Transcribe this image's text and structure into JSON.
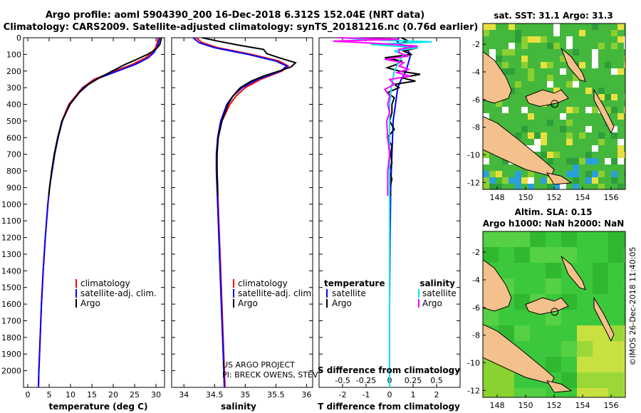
{
  "header": {
    "line1": "Argo profile: aoml 5904390_200 16-Dec-2018 6.312S 152.04E (NRT data)",
    "line2": "Climatology: CARS2009. Satellite-adjusted climatology: synTS_20181216.nc (0.76d earlier)"
  },
  "map_top": {
    "title": "sat. SST: 31.1 Argo: 31.3",
    "xticks": [
      "148",
      "150",
      "152",
      "154",
      "156"
    ],
    "yticks": [
      "-2",
      "-4",
      "-6",
      "-8",
      "-10",
      "-12"
    ],
    "profile_lon": 152.04,
    "profile_lat": -6.312
  },
  "map_bottom": {
    "title1": "Altim. SLA: 0.15",
    "title2": "Argo h1000: NaN h2000: NaN",
    "xticks": [
      "148",
      "150",
      "152",
      "154",
      "156"
    ],
    "yticks": [
      "-2",
      "-4",
      "-6",
      "-8",
      "-10",
      "-12"
    ],
    "profile_lon": 152.04,
    "profile_lat": -6.312
  },
  "credits": {
    "project": "US ARGO PROJECT",
    "pi": "PI: BRECK OWENS, STEVE JAYNE, P. ROBBINS",
    "imos": "©IMOS 26-Dec-2018 11:40:05"
  },
  "colors": {
    "climatology": "#ff0000",
    "satellite": "#0000ff",
    "argo": "#000000",
    "sal_satellite": "#00e5e5",
    "sal_argo": "#ff00ff",
    "ocean": "#3fbf3f",
    "land": "#f4c08c"
  },
  "chart_data": [
    {
      "type": "line",
      "name": "temperature",
      "xlabel": "temperature (deg C)",
      "xlim": [
        -1,
        32
      ],
      "xticks": [
        "0",
        "5",
        "10",
        "15",
        "20",
        "25",
        "30"
      ],
      "ylim": [
        2100,
        0
      ],
      "yticks": [
        "0",
        "100",
        "200",
        "300",
        "400",
        "500",
        "600",
        "700",
        "800",
        "900",
        "1000",
        "1100",
        "1200",
        "1300",
        "1400",
        "1500",
        "1600",
        "1700",
        "1800",
        "1900",
        "2000"
      ],
      "legend": [
        "climatology",
        "satellite-adj. clim.",
        "Argo"
      ],
      "series": [
        {
          "name": "climatology",
          "depth": [
            0,
            30,
            60,
            90,
            120,
            160,
            200,
            250,
            300,
            400,
            500,
            600,
            700,
            800,
            900,
            1000,
            1200,
            1400,
            1600,
            1800,
            2000,
            2100
          ],
          "values": [
            30.5,
            30.3,
            29.9,
            29.0,
            27.6,
            24.5,
            20.3,
            15.5,
            12.8,
            9.6,
            8.0,
            7.0,
            6.2,
            5.6,
            5.1,
            4.7,
            4.1,
            3.6,
            3.2,
            2.9,
            2.6,
            2.5
          ]
        },
        {
          "name": "satellite-adj. clim.",
          "depth": [
            0,
            30,
            60,
            90,
            120,
            160,
            200,
            250,
            300,
            400,
            500,
            600,
            700,
            800,
            900,
            1000,
            1200,
            1400,
            1600,
            1800,
            2000,
            2100
          ],
          "values": [
            30.9,
            30.6,
            30.2,
            29.5,
            28.2,
            25.2,
            21.0,
            15.9,
            13.0,
            9.8,
            8.1,
            7.1,
            6.3,
            5.7,
            5.1,
            4.7,
            4.1,
            3.6,
            3.2,
            2.9,
            2.6,
            2.5
          ]
        },
        {
          "name": "Argo",
          "depth": [
            0,
            20,
            40,
            60,
            80,
            100,
            130,
            160,
            200,
            240,
            280,
            330,
            400,
            500,
            600,
            700,
            800,
            900,
            950
          ],
          "values": [
            31.3,
            31.1,
            30.9,
            30.3,
            29.4,
            28.0,
            25.5,
            22.8,
            19.8,
            16.8,
            14.2,
            12.0,
            9.9,
            8.0,
            7.0,
            6.2,
            5.6,
            5.1,
            4.9
          ]
        }
      ]
    },
    {
      "type": "line",
      "name": "salinity",
      "xlabel": "salinity",
      "xlim": [
        33.8,
        36.1
      ],
      "xticks": [
        "34",
        "34.5",
        "35",
        "35.5",
        "36"
      ],
      "ylim": [
        2100,
        0
      ],
      "legend": [
        "climatology",
        "satellite-adj. clim.",
        "Argo"
      ],
      "series": [
        {
          "name": "climatology",
          "depth": [
            0,
            30,
            60,
            100,
            140,
            170,
            200,
            250,
            300,
            350,
            400,
            500,
            600,
            700,
            800,
            1000,
            1200,
            1400,
            1600,
            1800,
            2000,
            2100
          ],
          "values": [
            34.2,
            34.3,
            34.55,
            35.1,
            35.55,
            35.7,
            35.6,
            35.25,
            35.0,
            34.85,
            34.75,
            34.62,
            34.56,
            34.54,
            34.54,
            34.56,
            34.58,
            34.6,
            34.62,
            34.64,
            34.66,
            34.67
          ]
        },
        {
          "name": "satellite-adj. clim.",
          "depth": [
            0,
            30,
            60,
            100,
            140,
            170,
            200,
            250,
            300,
            350,
            400,
            500,
            600,
            700,
            800,
            1000,
            1200,
            1400,
            1600,
            1800,
            2000,
            2100
          ],
          "values": [
            34.15,
            34.25,
            34.5,
            35.05,
            35.5,
            35.68,
            35.58,
            35.2,
            34.95,
            34.8,
            34.7,
            34.6,
            34.55,
            34.53,
            34.53,
            34.55,
            34.57,
            34.59,
            34.61,
            34.63,
            34.65,
            34.66
          ]
        },
        {
          "name": "Argo",
          "depth": [
            0,
            20,
            45,
            70,
            95,
            120,
            150,
            175,
            200,
            230,
            260,
            300,
            350,
            400,
            500,
            600,
            700,
            800,
            900,
            950
          ],
          "values": [
            34.3,
            34.55,
            34.9,
            35.3,
            35.35,
            35.55,
            35.82,
            35.75,
            35.55,
            35.3,
            35.1,
            34.92,
            34.8,
            34.72,
            34.62,
            34.56,
            34.54,
            34.54,
            34.55,
            34.55
          ]
        }
      ]
    },
    {
      "type": "line",
      "name": "difference from climatology",
      "xlabel": "T difference from climatology",
      "xlabel_secondary": "S difference from climatology",
      "xlim": [
        -3,
        3
      ],
      "xticks": [
        "-2",
        "-1",
        "0",
        "1",
        "2"
      ],
      "xticks_secondary": [
        "-0.5",
        "-0.25",
        "0",
        "0.25",
        "0.5"
      ],
      "ylim": [
        2100,
        0
      ],
      "legend_left_title": "temperature",
      "legend_right_title": "salinity",
      "legend_left": [
        "satellite",
        "Argo"
      ],
      "legend_right": [
        "satellite",
        "Argo"
      ],
      "series": [
        {
          "name": "temperature satellite",
          "depth": [
            0,
            20,
            50,
            100,
            150,
            200,
            250,
            300,
            400,
            500,
            700,
            900,
            1200,
            1600,
            2000,
            2100
          ],
          "values": [
            0.4,
            0.3,
            0.6,
            0.9,
            0.8,
            0.7,
            0.5,
            0.35,
            0.25,
            0.15,
            0.1,
            0.05,
            0.02,
            0.0,
            0.0,
            0.0
          ]
        },
        {
          "name": "temperature Argo",
          "depth": [
            0,
            20,
            40,
            60,
            80,
            100,
            120,
            140,
            160,
            180,
            200,
            220,
            240,
            260,
            280,
            300,
            330,
            360,
            400,
            450,
            500,
            550,
            600,
            650,
            700,
            750,
            800,
            850,
            900,
            950
          ],
          "values": [
            0.5,
            0.8,
            0.3,
            1.2,
            0.6,
            0.9,
            -0.2,
            0.5,
            0.3,
            -0.1,
            0.4,
            1.3,
            0.5,
            1.1,
            0.2,
            0.4,
            -0.1,
            0.2,
            0.1,
            0.1,
            0.0,
            0.2,
            -0.1,
            0.1,
            0.05,
            0.1,
            0.0,
            0.1,
            0.0,
            0.05
          ]
        },
        {
          "name": "salinity satellite",
          "depth": [
            0,
            10,
            25,
            40,
            60,
            80,
            100,
            140,
            200,
            300,
            400,
            600,
            800,
            1000,
            1400,
            1800,
            2000,
            2100
          ],
          "values": [
            -0.5,
            -0.3,
            0.45,
            -0.2,
            0.3,
            0.05,
            0.15,
            0.1,
            0.05,
            0.02,
            0.0,
            0.0,
            0.0,
            0.0,
            0.0,
            0.0,
            0.0,
            0.0
          ]
        },
        {
          "name": "salinity Argo",
          "depth": [
            0,
            10,
            20,
            35,
            50,
            70,
            90,
            110,
            130,
            150,
            170,
            190,
            210,
            230,
            250,
            280,
            310,
            350,
            400,
            450,
            500,
            600,
            700,
            800,
            900,
            950
          ],
          "values": [
            -0.55,
            0.1,
            -0.6,
            -0.1,
            0.3,
            0.1,
            0.1,
            0.2,
            -0.05,
            0.15,
            0.1,
            0.2,
            0.08,
            0.22,
            0.0,
            0.05,
            -0.05,
            0.0,
            -0.02,
            0.0,
            -0.03,
            -0.02,
            0.0,
            -0.02,
            -0.02,
            -0.02
          ]
        }
      ]
    }
  ]
}
